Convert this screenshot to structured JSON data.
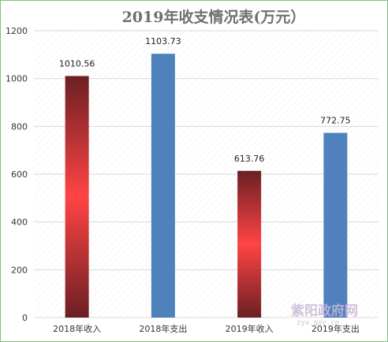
{
  "chart_data": {
    "type": "bar",
    "title": "2019年收支情况表(万元）",
    "xlabel": "",
    "ylabel": "",
    "categories": [
      "2018年收入",
      "2018年支出",
      "2019年收入",
      "2019年支出"
    ],
    "values": [
      1010.56,
      1103.73,
      613.76,
      772.75
    ],
    "data_labels": [
      "1010.56",
      "1103.73",
      "613.76",
      "772.75"
    ],
    "bar_styles": [
      "red-gradient",
      "blue",
      "red-gradient",
      "blue"
    ],
    "ylim": [
      0,
      1200
    ],
    "yticks": [
      0,
      200,
      400,
      600,
      800,
      1000,
      1200
    ],
    "grid": true,
    "legend": "none"
  },
  "colors": {
    "income_top": "#6b1f24",
    "income_mid": "#ff4444",
    "income_bottom": "#6b1f24",
    "expense": "#4f81bd",
    "grid": "#d9d9d9",
    "frame": "#7cc37c"
  },
  "watermark": {
    "main": "紫阳政府网",
    "sub": "zyx.gov.cn"
  }
}
